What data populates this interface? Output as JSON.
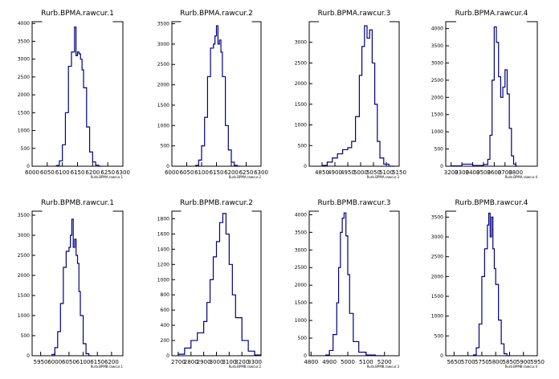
{
  "chart_data": [
    {
      "type": "histogram",
      "title": "Rurb.BPMA.rawcur.1",
      "xlabel": "Rurb.BPMA.rawcur.1",
      "xlim": [
        6000,
        6300
      ],
      "ylim": [
        0,
        4050
      ],
      "xticks": [
        "6000",
        "6050",
        "6100",
        "6150",
        "6200",
        "6250",
        "6300"
      ],
      "yticks": [
        "0",
        "500",
        "1000",
        "1500",
        "2000",
        "2500",
        "3000",
        "3500",
        "4000"
      ],
      "line_color": "#000080",
      "x": [
        6080,
        6090,
        6100,
        6110,
        6120,
        6130,
        6140,
        6145,
        6150,
        6155,
        6160,
        6165,
        6170,
        6180,
        6190,
        6200,
        6210,
        6220
      ],
      "values": [
        20,
        150,
        600,
        1500,
        2800,
        3200,
        3900,
        3100,
        3200,
        3150,
        3000,
        2700,
        2200,
        1100,
        400,
        120,
        30,
        0
      ]
    },
    {
      "type": "histogram",
      "title": "Rurb.BPMA.rawcur.2",
      "xlabel": "Rurb.BPMA.rawcur.2",
      "xlim": [
        6000,
        6300
      ],
      "ylim": [
        0,
        3550
      ],
      "xticks": [
        "6000",
        "6050",
        "6100",
        "6150",
        "6200",
        "6250",
        "6300"
      ],
      "yticks": [
        "0",
        "500",
        "1000",
        "1500",
        "2000",
        "2500",
        "3000",
        "3500"
      ],
      "line_color": "#000080",
      "x": [
        6080,
        6090,
        6100,
        6110,
        6120,
        6130,
        6140,
        6145,
        6150,
        6155,
        6160,
        6165,
        6170,
        6180,
        6190,
        6200,
        6210,
        6220
      ],
      "values": [
        20,
        150,
        500,
        1200,
        2200,
        2900,
        3000,
        3200,
        3450,
        3000,
        3100,
        2800,
        2200,
        1000,
        400,
        100,
        20,
        0
      ]
    },
    {
      "type": "histogram",
      "title": "Rurb.BPMA.rawcur.3",
      "xlabel": "Rurb.BPMA.rawcur.3",
      "xlim": [
        4800,
        5150
      ],
      "ylim": [
        0,
        3500
      ],
      "xticks": [
        "4850",
        "4900",
        "4950",
        "5000",
        "5050",
        "5100",
        "5150"
      ],
      "yticks": [
        "0",
        "500",
        "1000",
        "1500",
        "2000",
        "2500",
        "3000"
      ],
      "line_color": "#000080",
      "x": [
        4850,
        4870,
        4890,
        4910,
        4930,
        4950,
        4965,
        4980,
        4995,
        5005,
        5015,
        5025,
        5035,
        5045,
        5055,
        5065,
        5075,
        5090,
        5110
      ],
      "values": [
        20,
        100,
        200,
        300,
        400,
        450,
        600,
        1200,
        2200,
        2900,
        3400,
        3100,
        3300,
        2500,
        1500,
        600,
        200,
        50,
        0
      ]
    },
    {
      "type": "histogram",
      "title": "Rurb.BPMA.rawcur.4",
      "xlabel": "Rurb.BPMA.rawcur.4",
      "xlim": [
        3150,
        4000
      ],
      "ylim": [
        0,
        4200
      ],
      "xticks": [
        "3200",
        "3300",
        "3400",
        "3500",
        "3600",
        "3700",
        "3800"
      ],
      "yticks": [
        "0",
        "500",
        "1000",
        "1500",
        "2000",
        "2500",
        "3000",
        "3500",
        "4000"
      ],
      "line_color": "#000080",
      "x": [
        3200,
        3300,
        3400,
        3500,
        3540,
        3560,
        3580,
        3600,
        3620,
        3640,
        3660,
        3680,
        3700,
        3720,
        3740,
        3760,
        3780,
        3800
      ],
      "values": [
        10,
        60,
        20,
        50,
        200,
        900,
        2500,
        4050,
        3600,
        2600,
        2000,
        2300,
        2800,
        2100,
        1100,
        300,
        60,
        0
      ]
    },
    {
      "type": "histogram",
      "title": "Rurb.BPMB.rawcur.1",
      "xlabel": "Rurb.BPMB.rawcur.1",
      "xlim": [
        5920,
        6240
      ],
      "ylim": [
        0,
        3600
      ],
      "xticks": [
        "5950",
        "6000",
        "6050",
        "6100",
        "6150",
        "6200"
      ],
      "yticks": [
        "0",
        "500",
        "1000",
        "1500",
        "2000",
        "2500",
        "3000",
        "3500"
      ],
      "line_color": "#000080",
      "x": [
        5990,
        6000,
        6010,
        6020,
        6030,
        6040,
        6050,
        6055,
        6060,
        6065,
        6070,
        6075,
        6080,
        6085,
        6090,
        6100,
        6110,
        6120
      ],
      "values": [
        30,
        200,
        600,
        1300,
        2200,
        2600,
        2700,
        3000,
        3400,
        2700,
        2900,
        2500,
        2300,
        1600,
        1000,
        300,
        50,
        0
      ]
    },
    {
      "type": "histogram",
      "title": "Rurb.BPMB.rawcur.2",
      "xlabel": "Rurb.BPMB.rawcur.2",
      "xlim": [
        2650,
        3350
      ],
      "ylim": [
        0,
        1900
      ],
      "xticks": [
        "2700",
        "2800",
        "2900",
        "3000",
        "3100",
        "3200",
        "3300"
      ],
      "yticks": [
        "0",
        "200",
        "400",
        "600",
        "800",
        "1000",
        "1200",
        "1400",
        "1600",
        "1800"
      ],
      "line_color": "#000080",
      "x": [
        2700,
        2750,
        2800,
        2850,
        2900,
        2925,
        2950,
        2975,
        3000,
        3025,
        3050,
        3075,
        3100,
        3125,
        3150,
        3200,
        3250,
        3300
      ],
      "values": [
        20,
        100,
        200,
        300,
        450,
        700,
        1000,
        1300,
        1500,
        1750,
        1870,
        1600,
        1200,
        800,
        500,
        200,
        60,
        10
      ]
    },
    {
      "type": "histogram",
      "title": "Rurb.BPMB.rawcur.3",
      "xlabel": "Rurb.BPMB.rawcur.3",
      "xlim": [
        4790,
        5280
      ],
      "ylim": [
        0,
        4100
      ],
      "xticks": [
        "4800",
        "4900",
        "5000",
        "5100",
        "5200"
      ],
      "yticks": [
        "0",
        "500",
        "1000",
        "1500",
        "2000",
        "2500",
        "3000",
        "3500",
        "4000"
      ],
      "line_color": "#000080",
      "x": [
        4880,
        4900,
        4920,
        4940,
        4950,
        4960,
        4970,
        4980,
        4990,
        5000,
        5010,
        5030,
        5060,
        5100,
        5150
      ],
      "values": [
        20,
        150,
        600,
        1500,
        2500,
        3500,
        3900,
        4050,
        3400,
        2300,
        1200,
        400,
        100,
        20,
        0
      ]
    },
    {
      "type": "histogram",
      "title": "Rurb.BPMB.rawcur.4",
      "xlabel": "Rurb.BPMB.rawcur.4",
      "xlim": [
        5620,
        5950
      ],
      "ylim": [
        0,
        3650
      ],
      "xticks": [
        "5650",
        "5700",
        "5750",
        "5800",
        "5850",
        "5900",
        "5950"
      ],
      "yticks": [
        "0",
        "500",
        "1000",
        "1500",
        "2000",
        "2500",
        "3000",
        "3500"
      ],
      "line_color": "#000080",
      "x": [
        5720,
        5730,
        5740,
        5750,
        5760,
        5770,
        5775,
        5780,
        5785,
        5790,
        5795,
        5800,
        5810,
        5820,
        5830,
        5840
      ],
      "values": [
        20,
        200,
        800,
        2000,
        2700,
        3300,
        3600,
        3000,
        3500,
        2700,
        2200,
        1800,
        900,
        300,
        50,
        0
      ]
    }
  ]
}
